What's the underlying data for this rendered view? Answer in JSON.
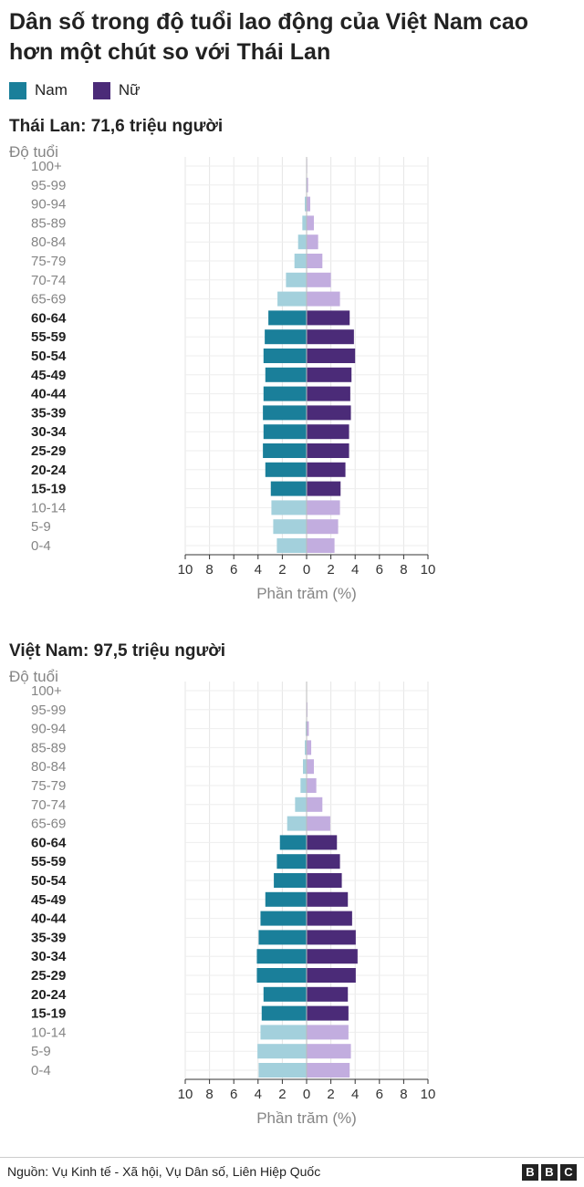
{
  "title": "Dân số trong độ tuổi lao động của Việt Nam cao hơn một chút so với Thái Lan",
  "legend": [
    {
      "label": "Nam",
      "color": "#1a7f9a"
    },
    {
      "label": "Nữ",
      "color": "#4b2b78"
    }
  ],
  "colors": {
    "male_working": "#1a7f9a",
    "male_other": "#a3d0dc",
    "female_working": "#4b2b78",
    "female_other": "#c2addf",
    "working_label": "#222222",
    "other_label": "#858585"
  },
  "source": "Nguồn: Vụ Kinh tế - Xã hội, Vụ Dân số, Liên Hiệp Quốc",
  "brand_letters": [
    "B",
    "B",
    "C"
  ],
  "chart_data": [
    {
      "type": "bar",
      "orientation": "horizontal-population-pyramid",
      "title": "Thái Lan: 71,6 triệu người",
      "ylabel": "Độ tuổi",
      "xlabel": "Phần trăm (%)",
      "xlim": [
        -10,
        10
      ],
      "x_ticks": [
        "10",
        "8",
        "6",
        "4",
        "2",
        "0",
        "2",
        "4",
        "6",
        "8",
        "10"
      ],
      "grid": true,
      "categories": [
        "100+",
        "95-99",
        "90-94",
        "85-89",
        "80-84",
        "75-79",
        "70-74",
        "65-69",
        "60-64",
        "55-59",
        "50-54",
        "45-49",
        "40-44",
        "35-39",
        "30-34",
        "25-29",
        "20-24",
        "15-19",
        "10-14",
        "5-9",
        "0-4"
      ],
      "working_age": [
        "60-64",
        "55-59",
        "50-54",
        "45-49",
        "40-44",
        "35-39",
        "30-34",
        "25-29",
        "20-24",
        "15-19"
      ],
      "series": [
        {
          "name": "Nam",
          "values": [
            0.02,
            0.05,
            0.15,
            0.35,
            0.7,
            1.0,
            1.7,
            2.4,
            3.15,
            3.45,
            3.55,
            3.4,
            3.55,
            3.6,
            3.55,
            3.6,
            3.4,
            2.95,
            2.9,
            2.75,
            2.45
          ]
        },
        {
          "name": "Nữ",
          "values": [
            0.05,
            0.12,
            0.3,
            0.6,
            0.95,
            1.3,
            2.0,
            2.75,
            3.55,
            3.9,
            4.0,
            3.7,
            3.6,
            3.65,
            3.5,
            3.5,
            3.2,
            2.8,
            2.75,
            2.6,
            2.3
          ]
        }
      ]
    },
    {
      "type": "bar",
      "orientation": "horizontal-population-pyramid",
      "title": "Việt Nam: 97,5 triệu người",
      "ylabel": "Độ tuổi",
      "xlabel": "Phần trăm (%)",
      "xlim": [
        -10,
        10
      ],
      "x_ticks": [
        "10",
        "8",
        "6",
        "4",
        "2",
        "0",
        "2",
        "4",
        "6",
        "8",
        "10"
      ],
      "grid": true,
      "categories": [
        "100+",
        "95-99",
        "90-94",
        "85-89",
        "80-84",
        "75-79",
        "70-74",
        "65-69",
        "60-64",
        "55-59",
        "50-54",
        "45-49",
        "40-44",
        "35-39",
        "30-34",
        "25-29",
        "20-24",
        "15-19",
        "10-14",
        "5-9",
        "0-4"
      ],
      "working_age": [
        "60-64",
        "55-59",
        "50-54",
        "45-49",
        "40-44",
        "35-39",
        "30-34",
        "25-29",
        "20-24",
        "15-19"
      ],
      "series": [
        {
          "name": "Nam",
          "values": [
            0.01,
            0.03,
            0.08,
            0.15,
            0.3,
            0.5,
            0.95,
            1.6,
            2.2,
            2.45,
            2.7,
            3.4,
            3.8,
            3.95,
            4.1,
            4.1,
            3.55,
            3.7,
            3.8,
            4.05,
            3.95
          ]
        },
        {
          "name": "Nữ",
          "values": [
            0.02,
            0.07,
            0.18,
            0.38,
            0.6,
            0.8,
            1.3,
            1.95,
            2.5,
            2.75,
            2.9,
            3.4,
            3.75,
            4.05,
            4.2,
            4.05,
            3.4,
            3.45,
            3.45,
            3.65,
            3.55
          ]
        }
      ]
    }
  ]
}
